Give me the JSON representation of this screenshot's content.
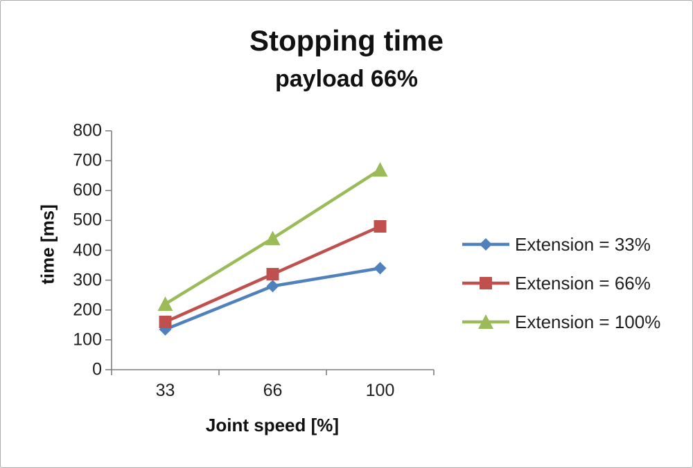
{
  "frame": {
    "background": "#ffffff",
    "border_color": "#ababab"
  },
  "chart": {
    "title": "Stopping time",
    "subtitle": "payload 66%"
  },
  "chart_data": {
    "type": "line",
    "title": "Stopping time",
    "subtitle": "payload 66%",
    "xlabel": "Joint speed [%]",
    "ylabel": "time [ms]",
    "categories": [
      "33",
      "66",
      "100"
    ],
    "series": [
      {
        "name": "Extension = 33%",
        "values": [
          135,
          280,
          340
        ],
        "color": "#4f81bd",
        "marker": "diamond"
      },
      {
        "name": "Extension = 66%",
        "values": [
          160,
          320,
          480
        ],
        "color": "#c0504d",
        "marker": "square"
      },
      {
        "name": "Extension = 100%",
        "values": [
          220,
          440,
          670
        ],
        "color": "#9bbb59",
        "marker": "triangle"
      }
    ],
    "ylim": [
      0,
      800
    ],
    "ytick_step": 100,
    "yticks": [
      0,
      100,
      200,
      300,
      400,
      500,
      600,
      700,
      800
    ],
    "grid": false,
    "legend_position": "right",
    "axis_color": "#7f7f7f"
  }
}
